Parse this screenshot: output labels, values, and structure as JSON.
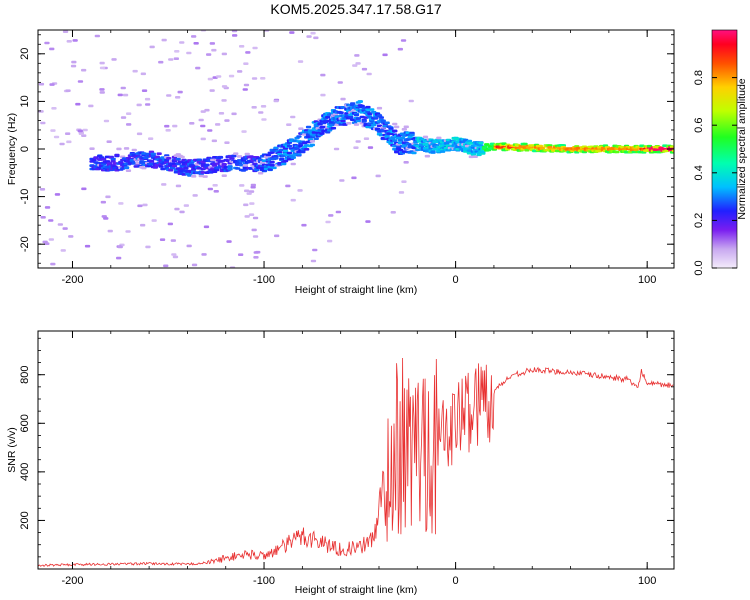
{
  "title": "KOM5.2025.347.17.58.G17",
  "colors": {
    "line": "#e83030",
    "axis": "#000000",
    "background": "#ffffff"
  },
  "chart_data": [
    {
      "type": "heatmap",
      "title": "KOM5.2025.347.17.58.G17",
      "xlabel": "Height of straight line (km)",
      "ylabel": "Frequency (Hz)",
      "xlim": [
        -218,
        114
      ],
      "ylim": [
        -25,
        25
      ],
      "xticks": [
        -200,
        -100,
        0,
        100
      ],
      "yticks": [
        -20,
        -10,
        0,
        10,
        20
      ],
      "colorbar": {
        "label": "Normalized spectral amplitude",
        "range": [
          0,
          1
        ],
        "ticks": [
          0.0,
          0.2,
          0.4,
          0.6,
          0.8
        ]
      },
      "ridge": {
        "description_points_x": [
          -180,
          -160,
          -140,
          -120,
          -100,
          -85,
          -75,
          -70,
          -60,
          -50,
          -40,
          -30,
          -25,
          -20,
          -10,
          0,
          10,
          20,
          40,
          60,
          80,
          100,
          114
        ],
        "description_points_y": [
          -3,
          -2,
          -4,
          -3,
          -3,
          0,
          3,
          5,
          7,
          8,
          5,
          1,
          1.5,
          1,
          0.5,
          1,
          0,
          0.5,
          0.3,
          0,
          0,
          0,
          0
        ]
      }
    },
    {
      "type": "line",
      "xlabel": "Height of straight line (km)",
      "ylabel": "SNR (v/v)",
      "xlim": [
        -218,
        114
      ],
      "ylim": [
        0,
        980
      ],
      "xticks": [
        -200,
        -100,
        0,
        100
      ],
      "yticks": [
        200,
        400,
        600,
        800
      ],
      "series": [
        {
          "name": "SNR",
          "x": [
            -218,
            -200,
            -180,
            -160,
            -140,
            -130,
            -120,
            -110,
            -100,
            -90,
            -80,
            -70,
            -60,
            -50,
            -45,
            -40,
            -35,
            -30,
            -25,
            -20,
            -15,
            -10,
            -5,
            0,
            5,
            10,
            15,
            20,
            25,
            30,
            40,
            50,
            60,
            70,
            80,
            90,
            95,
            97,
            100,
            105,
            110,
            114
          ],
          "values": [
            15,
            18,
            20,
            22,
            20,
            25,
            45,
            60,
            55,
            90,
            140,
            110,
            80,
            90,
            110,
            200,
            400,
            520,
            480,
            500,
            540,
            520,
            560,
            600,
            650,
            680,
            700,
            730,
            770,
            800,
            820,
            815,
            810,
            800,
            790,
            780,
            740,
            820,
            760,
            760,
            755,
            760
          ]
        }
      ]
    }
  ]
}
